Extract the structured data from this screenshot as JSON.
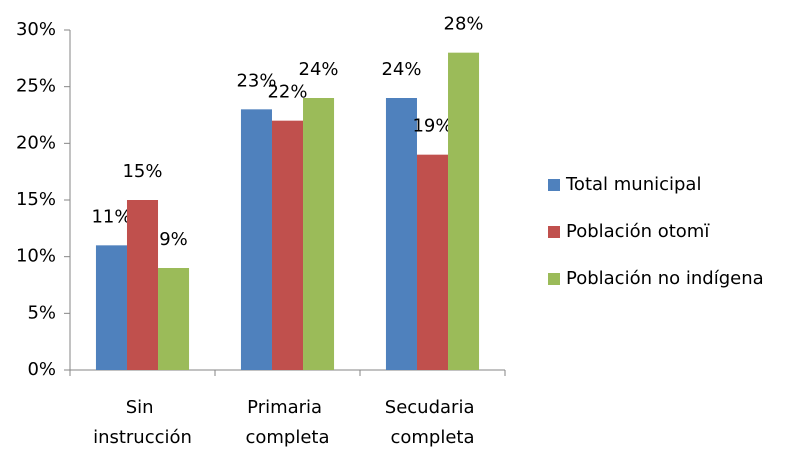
{
  "chart_data": {
    "type": "bar",
    "categories": [
      "Sin instrucción",
      "Primaria completa",
      "Secudaria completa"
    ],
    "series": [
      {
        "name": "Total municipal",
        "color": "#4f81bd",
        "values": [
          11,
          23,
          24
        ],
        "value_labels": [
          "11%",
          "23%",
          "24%"
        ]
      },
      {
        "name": "Población otomï",
        "color": "#c0504d",
        "values": [
          15,
          22,
          19
        ],
        "value_labels": [
          "15%",
          "22%",
          "19%"
        ]
      },
      {
        "name": "Población no indígena",
        "color": "#9bbb59",
        "values": [
          9,
          24,
          28
        ],
        "value_labels": [
          "9%",
          "24%",
          "28%"
        ]
      }
    ],
    "ylim": [
      0,
      30
    ],
    "yticks": [
      {
        "value": 0,
        "label": "0%"
      },
      {
        "value": 5,
        "label": "5%"
      },
      {
        "value": 10,
        "label": "10%"
      },
      {
        "value": 15,
        "label": "15%"
      },
      {
        "value": 20,
        "label": "20%"
      },
      {
        "value": 25,
        "label": "25%"
      },
      {
        "value": 30,
        "label": "30%"
      }
    ],
    "grid": false,
    "legend": "right"
  }
}
